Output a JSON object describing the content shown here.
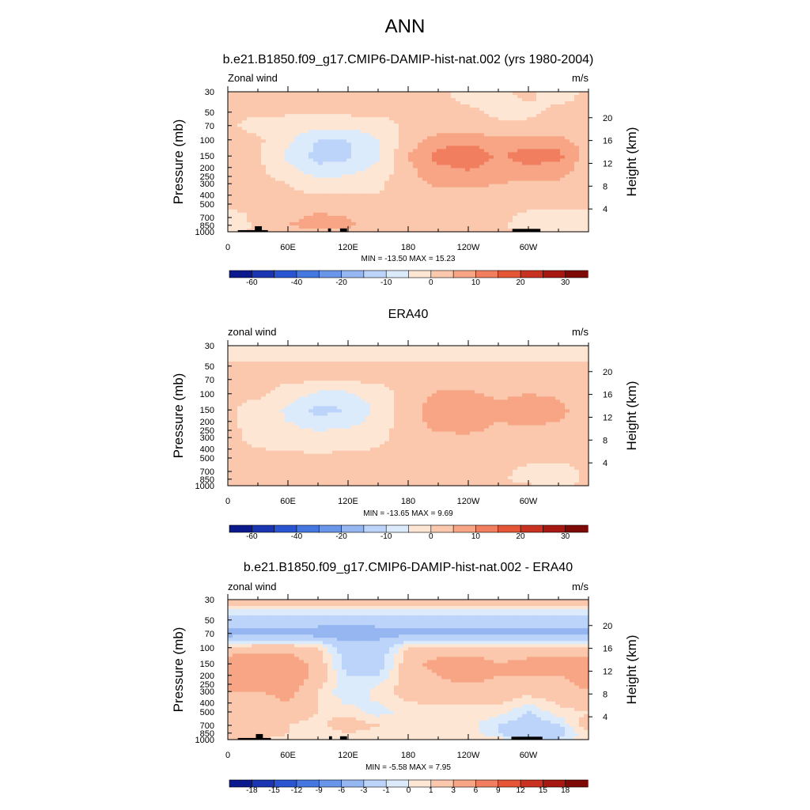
{
  "page_title": "ANN",
  "colors": {
    "abs": [
      "#0a1a8c",
      "#1a35b2",
      "#2a55d2",
      "#4477e0",
      "#6a96ea",
      "#96b6f2",
      "#bcd4fa",
      "#dcebfb",
      "#fde6d4",
      "#fbc8ad",
      "#f7a585",
      "#f17e5e",
      "#e45636",
      "#c93220",
      "#a81812",
      "#7e0a08"
    ],
    "diff": [
      "#0a1a8c",
      "#1a35b2",
      "#2a55d2",
      "#4477e0",
      "#6a96ea",
      "#96b6f2",
      "#bcd4fa",
      "#dcebfb",
      "#fde6d4",
      "#fbc8ad",
      "#f7a585",
      "#f17e5e",
      "#e45636",
      "#c93220",
      "#a81812",
      "#7e0a08"
    ],
    "land": "#000000"
  },
  "chart_data": [
    {
      "type": "heatmap",
      "title": "b.e21.B1850.f09_g17.CMIP6-DAMIP-hist-nat.002 (yrs 1980-2004)",
      "left_label": "Zonal wind",
      "right_label": "m/s",
      "ylabel": "Pressure (mb)",
      "ylabel_right": "Height (km)",
      "x_ticks": [
        "0",
        "60E",
        "120E",
        "180",
        "120W",
        "60W"
      ],
      "x_tick_lons": [
        0,
        60,
        120,
        180,
        240,
        300
      ],
      "xlim": [
        0,
        360
      ],
      "y_ticks": [
        "30",
        "50",
        "70",
        "100",
        "150",
        "200",
        "250",
        "300",
        "400",
        "500",
        "700",
        "850",
        "1000"
      ],
      "y_tick_values": [
        30,
        50,
        70,
        100,
        150,
        200,
        250,
        300,
        400,
        500,
        700,
        850,
        1000
      ],
      "y_scale": "log",
      "ylim": [
        1000,
        30
      ],
      "height_ticks": [
        "20",
        "16",
        "12",
        "8",
        "4"
      ],
      "height_tick_values": [
        20,
        16,
        12,
        8,
        4
      ],
      "stats": "MIN = -13.50  MAX =  15.23",
      "min": -13.5,
      "max": 15.23,
      "colorbar": {
        "levels": [
          -70,
          -60,
          -50,
          -40,
          -30,
          -20,
          -15,
          -10,
          -5,
          0,
          5,
          10,
          15,
          20,
          25,
          30,
          35
        ],
        "labels": [
          "-60",
          "-40",
          "-20",
          "-10",
          "0",
          "10",
          "20",
          "30"
        ],
        "label_levels": [
          -60,
          -40,
          -20,
          -10,
          0,
          10,
          20,
          30
        ],
        "palette": "abs"
      },
      "field": {
        "lon": [
          0,
          30,
          60,
          90,
          120,
          150,
          180,
          210,
          240,
          270,
          300,
          330,
          360
        ],
        "p": [
          30,
          50,
          70,
          100,
          150,
          200,
          300,
          500,
          700,
          850,
          1000
        ],
        "values": [
          [
            1,
            1,
            1,
            1,
            1,
            1,
            1,
            1,
            -2,
            -1,
            1,
            -2,
            1
          ],
          [
            1,
            1,
            1,
            1,
            1,
            1,
            1,
            1,
            1,
            -1,
            -1,
            1,
            1
          ],
          [
            1,
            -2,
            -3,
            -3,
            -3,
            -2,
            1,
            2,
            2,
            1,
            1,
            2,
            1
          ],
          [
            3,
            1,
            -4,
            -10,
            -10,
            -5,
            2,
            7,
            8,
            6,
            7,
            6,
            3
          ],
          [
            2,
            1,
            -6,
            -12,
            -11,
            -6,
            5,
            12,
            15,
            9,
            13,
            12,
            2
          ],
          [
            2,
            1,
            -4,
            -9,
            -8,
            -4,
            4,
            9,
            11,
            8,
            9,
            8,
            2
          ],
          [
            2,
            2,
            0,
            -3,
            -2,
            -1,
            3,
            6,
            6,
            5,
            4,
            4,
            2
          ],
          [
            1,
            1,
            2,
            3,
            2,
            1,
            1,
            2,
            2,
            2,
            1,
            1,
            1
          ],
          [
            -2,
            1,
            4,
            6,
            5,
            3,
            1,
            1,
            1,
            1,
            -1,
            -1,
            -2
          ],
          [
            -3,
            1,
            5,
            7,
            6,
            3,
            1,
            1,
            1,
            1,
            -2,
            -3,
            -3
          ],
          [
            -1,
            1,
            3,
            4,
            3,
            1,
            1,
            1,
            1,
            1,
            -1,
            -2,
            -1
          ]
        ]
      },
      "land": [
        {
          "lon": [
            10,
            40
          ],
          "p": [
            960,
            1000
          ]
        },
        {
          "lon": [
            27,
            34
          ],
          "p": [
            870,
            1000
          ]
        },
        {
          "lon": [
            100,
            103
          ],
          "p": [
            920,
            1000
          ]
        },
        {
          "lon": [
            112,
            119
          ],
          "p": [
            920,
            1000
          ]
        },
        {
          "lon": [
            284,
            312
          ],
          "p": [
            930,
            1000
          ]
        }
      ]
    },
    {
      "type": "heatmap",
      "title": "ERA40",
      "left_label": "zonal wind",
      "right_label": "m/s",
      "ylabel": "Pressure (mb)",
      "ylabel_right": "Height (km)",
      "x_ticks": [
        "0",
        "60E",
        "120E",
        "180",
        "120W",
        "60W"
      ],
      "x_tick_lons": [
        0,
        60,
        120,
        180,
        240,
        300
      ],
      "xlim": [
        0,
        360
      ],
      "y_ticks": [
        "30",
        "50",
        "70",
        "100",
        "150",
        "200",
        "250",
        "300",
        "400",
        "500",
        "700",
        "850",
        "1000"
      ],
      "y_tick_values": [
        30,
        50,
        70,
        100,
        150,
        200,
        250,
        300,
        400,
        500,
        700,
        850,
        1000
      ],
      "y_scale": "log",
      "ylim": [
        1000,
        30
      ],
      "height_ticks": [
        "20",
        "16",
        "12",
        "8",
        "4"
      ],
      "height_tick_values": [
        20,
        16,
        12,
        8,
        4
      ],
      "stats": "MIN = -13.65  MAX =   9.69",
      "min": -13.65,
      "max": 9.69,
      "colorbar": {
        "levels": [
          -70,
          -60,
          -50,
          -40,
          -30,
          -20,
          -15,
          -10,
          -5,
          0,
          5,
          10,
          15,
          20,
          25,
          30,
          35
        ],
        "labels": [
          "-60",
          "-40",
          "-20",
          "-10",
          "0",
          "10",
          "20",
          "30"
        ],
        "label_levels": [
          -60,
          -40,
          -20,
          -10,
          0,
          10,
          20,
          30
        ],
        "palette": "abs"
      },
      "field": {
        "lon": [
          0,
          30,
          60,
          90,
          120,
          150,
          180,
          210,
          240,
          270,
          300,
          330,
          360
        ],
        "p": [
          30,
          50,
          70,
          100,
          150,
          200,
          300,
          500,
          700,
          850,
          1000
        ],
        "values": [
          [
            -3,
            -3,
            -3,
            -3,
            -3,
            -3,
            -3,
            -3,
            -3,
            -3,
            -3,
            -3,
            -3
          ],
          [
            1,
            1,
            1,
            1,
            1,
            1,
            1,
            1,
            1,
            1,
            1,
            1,
            1
          ],
          [
            1,
            1,
            1,
            1,
            1,
            1,
            1,
            1,
            1,
            1,
            1,
            1,
            1
          ],
          [
            1,
            1,
            -2,
            -6,
            -6,
            -2,
            2,
            6,
            6,
            4,
            5,
            4,
            1
          ],
          [
            1,
            -2,
            -6,
            -12,
            -10,
            -4,
            3,
            8,
            9,
            6,
            9,
            7,
            1
          ],
          [
            1,
            -2,
            -5,
            -8,
            -7,
            -3,
            3,
            7,
            8,
            5,
            6,
            5,
            1
          ],
          [
            1,
            -1,
            -2,
            -3,
            -2,
            -1,
            2,
            4,
            4,
            3,
            3,
            2,
            1
          ],
          [
            1,
            1,
            1,
            1,
            1,
            1,
            1,
            2,
            2,
            1,
            1,
            1,
            1
          ],
          [
            1,
            1,
            3,
            4,
            3,
            2,
            1,
            1,
            1,
            1,
            -1,
            -2,
            1
          ],
          [
            1,
            2,
            4,
            5,
            4,
            2,
            1,
            1,
            1,
            1,
            -2,
            -3,
            1
          ],
          [
            2,
            1,
            2,
            3,
            2,
            1,
            1,
            1,
            1,
            2,
            1,
            -1,
            2
          ]
        ]
      },
      "land": []
    },
    {
      "type": "heatmap",
      "title": "b.e21.B1850.f09_g17.CMIP6-DAMIP-hist-nat.002 - ERA40",
      "left_label": "zonal wind",
      "right_label": "m/s",
      "ylabel": "Pressure (mb)",
      "ylabel_right": "Height (km)",
      "x_ticks": [
        "0",
        "60E",
        "120E",
        "180",
        "120W",
        "60W"
      ],
      "x_tick_lons": [
        0,
        60,
        120,
        180,
        240,
        300
      ],
      "xlim": [
        0,
        360
      ],
      "y_ticks": [
        "30",
        "50",
        "70",
        "100",
        "150",
        "200",
        "250",
        "300",
        "400",
        "500",
        "700",
        "850",
        "1000"
      ],
      "y_tick_values": [
        30,
        50,
        70,
        100,
        150,
        200,
        250,
        300,
        400,
        500,
        700,
        850,
        1000
      ],
      "y_scale": "log",
      "ylim": [
        1000,
        30
      ],
      "height_ticks": [
        "20",
        "16",
        "12",
        "8",
        "4"
      ],
      "height_tick_values": [
        20,
        16,
        12,
        8,
        4
      ],
      "stats": "MIN =  -5.58  MAX =   7.95",
      "min": -5.58,
      "max": 7.95,
      "colorbar": {
        "levels": [
          -21,
          -18,
          -15,
          -12,
          -9,
          -6,
          -3,
          -1,
          0,
          1,
          3,
          6,
          9,
          12,
          15,
          18,
          21
        ],
        "labels": [
          "-18",
          "-15",
          "-12",
          "-9",
          "-6",
          "-3",
          "-1",
          "0",
          "1",
          "3",
          "6",
          "9",
          "12",
          "15",
          "18"
        ],
        "label_levels": [
          -18,
          -15,
          -12,
          -9,
          -6,
          -3,
          -1,
          0,
          1,
          3,
          6,
          9,
          12,
          15,
          18
        ],
        "palette": "diff"
      },
      "field": {
        "lon": [
          0,
          30,
          60,
          90,
          120,
          150,
          180,
          210,
          240,
          270,
          300,
          330,
          360
        ],
        "p": [
          30,
          50,
          70,
          100,
          150,
          200,
          300,
          500,
          700,
          850,
          1000
        ],
        "values": [
          [
            2,
            2,
            2,
            2,
            2,
            2,
            2,
            2,
            2,
            2,
            2,
            2,
            2
          ],
          [
            -2,
            -2,
            -2,
            -2,
            -2,
            -2,
            -2,
            -2,
            -2,
            -2,
            -2,
            -2,
            -2
          ],
          [
            -4,
            -4,
            -4,
            -4,
            -4.5,
            -4,
            -3.5,
            -3.5,
            -3.5,
            -3.5,
            -3.5,
            -3.5,
            -4
          ],
          [
            1,
            2,
            2,
            1,
            -2,
            -2,
            1,
            1,
            1,
            1,
            1,
            1,
            1
          ],
          [
            5,
            5,
            5,
            2,
            -2,
            -2,
            2,
            4,
            5,
            3,
            4,
            5,
            5
          ],
          [
            4,
            4,
            5,
            2,
            -1,
            -1,
            2,
            3,
            4,
            3,
            3,
            3,
            4
          ],
          [
            3,
            3,
            4,
            1,
            -1,
            0.5,
            1.5,
            2,
            2,
            2,
            1.5,
            2,
            3
          ],
          [
            1,
            1,
            2,
            1,
            0.5,
            -0.5,
            0.5,
            0.5,
            0.5,
            0.5,
            -1,
            0.5,
            1
          ],
          [
            2,
            1,
            1,
            0.5,
            2,
            1,
            0.5,
            0.5,
            0.5,
            -1,
            -2,
            -1,
            2
          ],
          [
            1,
            2,
            1,
            0.5,
            1,
            0.5,
            0.5,
            0.5,
            0.5,
            -1,
            -3,
            -2,
            1
          ],
          [
            1,
            1,
            0.5,
            0.5,
            0.5,
            0.5,
            0.5,
            0.5,
            0.5,
            0.5,
            -1,
            -1,
            1
          ]
        ]
      },
      "land": [
        {
          "lon": [
            10,
            43
          ],
          "p": [
            960,
            1000
          ]
        },
        {
          "lon": [
            28,
            35
          ],
          "p": [
            870,
            1000
          ]
        },
        {
          "lon": [
            101,
            104
          ],
          "p": [
            920,
            1000
          ]
        },
        {
          "lon": [
            112,
            119
          ],
          "p": [
            920,
            1000
          ]
        },
        {
          "lon": [
            283,
            314
          ],
          "p": [
            930,
            1000
          ]
        }
      ]
    }
  ]
}
